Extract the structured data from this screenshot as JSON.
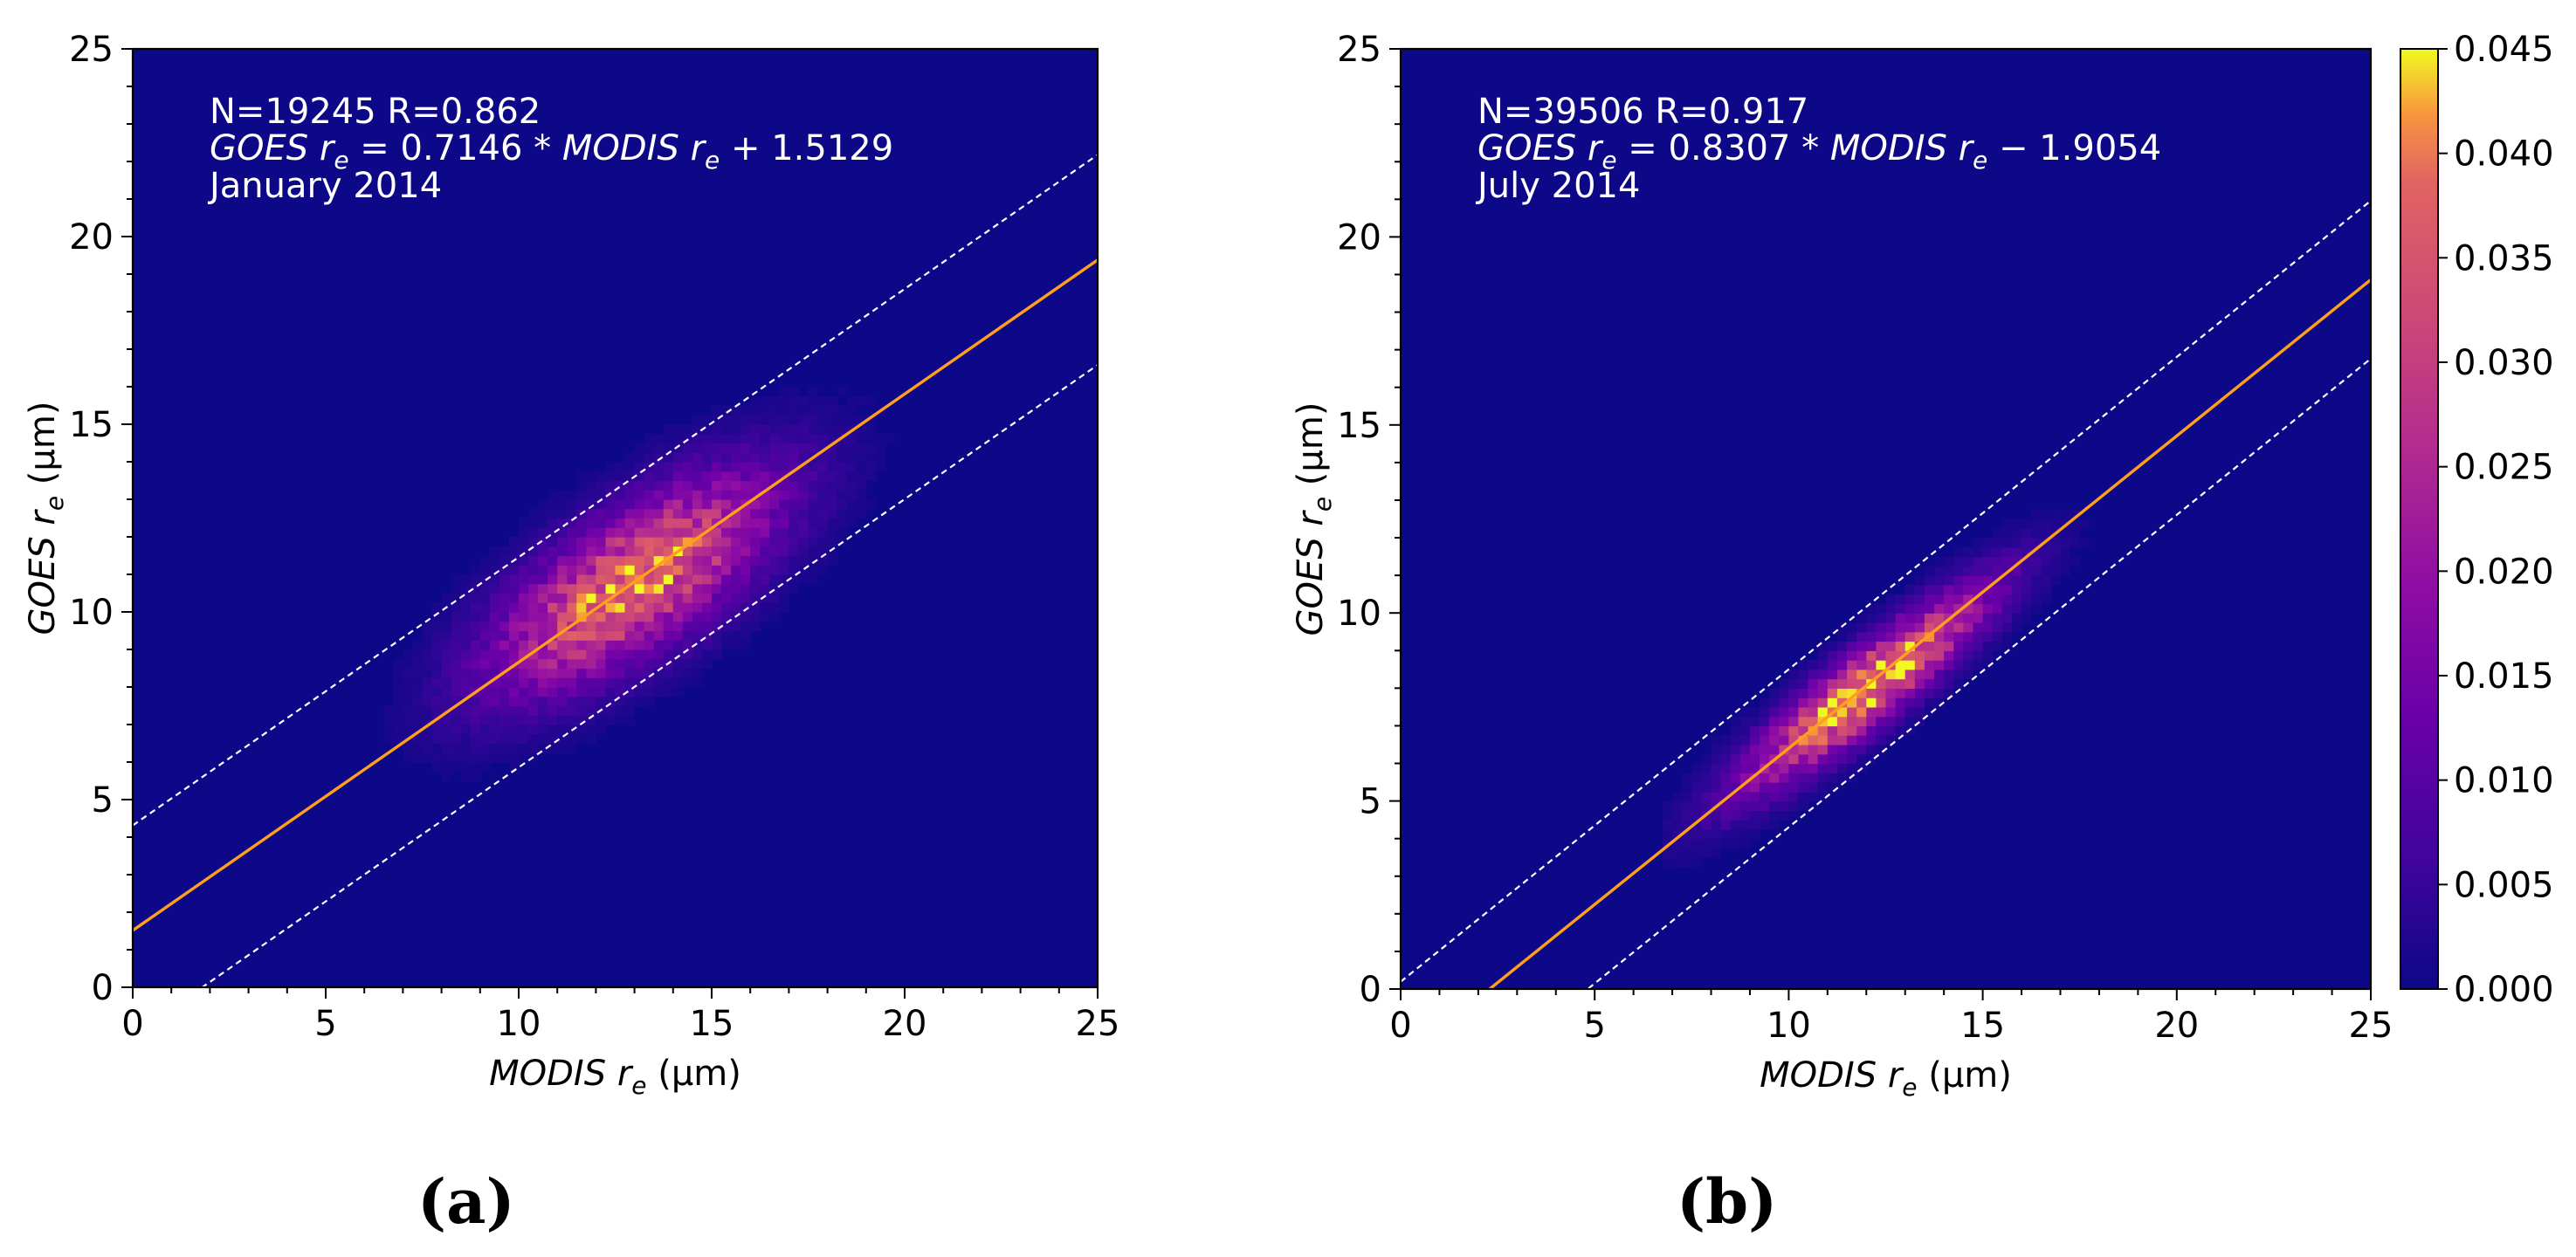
{
  "colorbar": {
    "ticks": [
      "0.000",
      "0.005",
      "0.010",
      "0.015",
      "0.020",
      "0.025",
      "0.030",
      "0.035",
      "0.040",
      "0.045"
    ],
    "range": [
      0,
      0.045
    ],
    "colormap": "plasma"
  },
  "chart_data": [
    {
      "type": "heatmap",
      "panel_label": "(a)",
      "title": "",
      "xlabel_main": "MODIS",
      "xlabel_sub": "e",
      "xlabel_unit": "(μm)",
      "ylabel_main": "GOES",
      "ylabel_sub": "e",
      "ylabel_unit": "(μm)",
      "xlim": [
        0,
        25
      ],
      "ylim": [
        0,
        25
      ],
      "x_ticks": [
        "0",
        "5",
        "10",
        "15",
        "20",
        "25"
      ],
      "y_ticks": [
        "0",
        "5",
        "10",
        "15",
        "20",
        "25"
      ],
      "annotation_stats": "N=19245     R=0.862",
      "annotation_equation": {
        "part1": "GOES",
        "sub1": "e",
        "part2": "= 0.7146 * ",
        "part3": "MODIS",
        "sub2": "e",
        "part4": "+ 1.5129"
      },
      "annotation_period": "January 2014",
      "N": 19245,
      "R": 0.862,
      "fit": {
        "slope": 0.7146,
        "intercept": 1.5129
      },
      "bounds_offset": 2.8,
      "density": {
        "x_range": [
          5.5,
          24.5
        ],
        "center": [
          13.0,
          10.8
        ],
        "peak": 0.04,
        "sigma_along": 2.9,
        "sigma_across": 1.15
      }
    },
    {
      "type": "heatmap",
      "panel_label": "(b)",
      "title": "",
      "xlabel_main": "MODIS",
      "xlabel_sub": "e",
      "xlabel_unit": "(μm)",
      "ylabel_main": "GOES",
      "ylabel_sub": "e",
      "ylabel_unit": "(μm)",
      "xlim": [
        0,
        25
      ],
      "ylim": [
        0,
        25
      ],
      "x_ticks": [
        "0",
        "5",
        "10",
        "15",
        "20",
        "25"
      ],
      "y_ticks": [
        "0",
        "5",
        "10",
        "15",
        "20",
        "25"
      ],
      "annotation_stats": "N=39506     R=0.917",
      "annotation_equation": {
        "part1": "GOES",
        "sub1": "e",
        "part2": "= 0.8307 * ",
        "part3": "MODIS",
        "sub2": "e",
        "part4": "− 1.9054"
      },
      "annotation_period": "July 2014",
      "N": 39506,
      "R": 0.917,
      "fit": {
        "slope": 0.8307,
        "intercept": -1.9054
      },
      "bounds_offset": 2.1,
      "density": {
        "x_range": [
          6.8,
          19.5
        ],
        "center": [
          12.0,
          8.0
        ],
        "peak": 0.045,
        "sigma_along": 2.7,
        "sigma_across": 0.6
      }
    }
  ]
}
